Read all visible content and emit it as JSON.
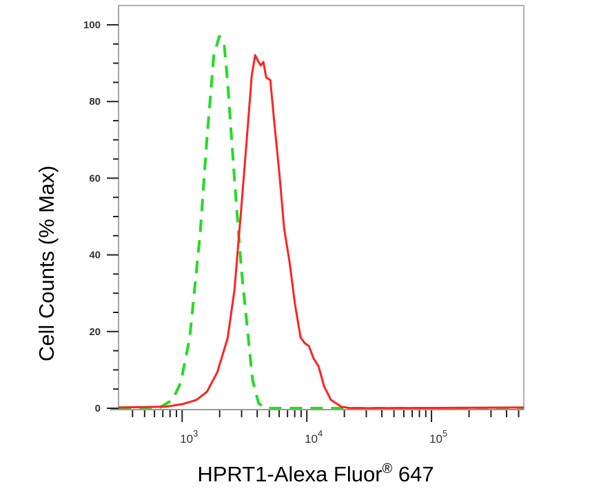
{
  "chart_data": {
    "type": "line",
    "title": "",
    "xlabel_main": "HPRT1-Alexa Fluor",
    "xlabel_sup": "®",
    "xlabel_end": " 647",
    "ylabel": "Cell Counts (% Max)",
    "x_scale": "log",
    "xlim": [
      309,
      550000
    ],
    "ylim": [
      0,
      100
    ],
    "grid": false,
    "y_ticks": [
      0,
      20,
      40,
      60,
      80,
      100
    ],
    "y_tick_labels": [
      "0",
      "20",
      "40",
      "60",
      "80",
      "100"
    ],
    "x_ticks": [
      {
        "value": 1000,
        "base": "10",
        "exp": "3"
      },
      {
        "value": 10000,
        "base": "10",
        "exp": "4"
      },
      {
        "value": 100000,
        "base": "10",
        "exp": "5"
      }
    ],
    "series": [
      {
        "style": "dashed",
        "color": "#22dd22",
        "x": [
          309,
          649,
          837,
          975,
          1150,
          1393,
          1581,
          1795,
          1987,
          2173,
          2317,
          2630,
          2987,
          3305,
          3664,
          4102,
          4667,
          550000
        ],
        "y": [
          0,
          0,
          2.2,
          6.7,
          18.3,
          45.3,
          70.5,
          92,
          97,
          95,
          85,
          59.7,
          36.3,
          22,
          7.5,
          1.3,
          0,
          0
        ]
      },
      {
        "style": "solid",
        "color": "#ff2222",
        "x": [
          309,
          736,
          1013,
          1306,
          1581,
          1914,
          2317,
          2630,
          2987,
          3305,
          3612,
          3852,
          4102,
          4266,
          4487,
          4721,
          5096,
          5500,
          6010,
          6570,
          7280,
          8050,
          8910,
          9610,
          10390,
          11360,
          12410,
          13740,
          15600,
          18880,
          22860,
          550000
        ],
        "y": [
          0.2,
          0.4,
          1.1,
          2.2,
          4.3,
          9.4,
          18.3,
          30.9,
          52.5,
          70.5,
          86.7,
          92.1,
          90.3,
          89.4,
          90.3,
          86.3,
          85.6,
          74.1,
          61.5,
          47,
          38,
          27,
          18.5,
          17,
          16.2,
          12.9,
          11,
          5.8,
          2.2,
          0.4,
          0,
          0.2
        ]
      }
    ]
  }
}
